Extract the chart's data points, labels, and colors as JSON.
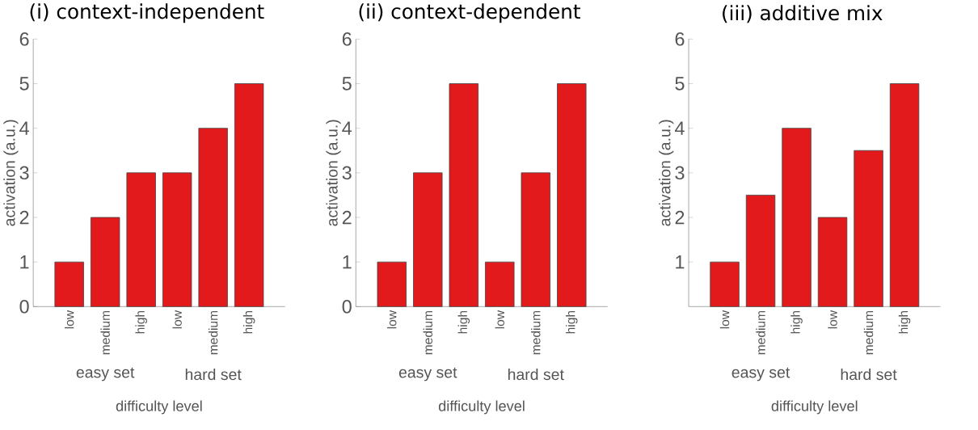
{
  "chart_data": [
    {
      "type": "bar",
      "title": "(i) context-independent",
      "categories": [
        "low",
        "medium",
        "high",
        "low",
        "medium",
        "high"
      ],
      "values": [
        1,
        2,
        3,
        3,
        4,
        5
      ],
      "color": "#e31a1c",
      "ylim": [
        0,
        6
      ],
      "yticks": [
        0,
        1,
        2,
        3,
        4,
        5,
        6
      ],
      "xlabel": "difficulty level",
      "ylabel": "activation (a.u.)",
      "annotations": [
        "easy set",
        "hard set"
      ]
    },
    {
      "type": "bar",
      "title": "(ii) context-dependent",
      "categories": [
        "low",
        "medium",
        "high",
        "low",
        "medium",
        "high"
      ],
      "values": [
        1,
        3,
        5,
        1,
        3,
        5
      ],
      "color": "#e31a1c",
      "ylim": [
        0,
        6
      ],
      "yticks": [
        0,
        1,
        2,
        3,
        4,
        5,
        6
      ],
      "xlabel": "difficulty level",
      "ylabel": "activation (a.u.)",
      "annotations": [
        "easy set",
        "hard set"
      ]
    },
    {
      "type": "bar",
      "title": "(iii) additive mix",
      "categories": [
        "low",
        "medium",
        "high",
        "low",
        "medium",
        "high"
      ],
      "values": [
        1,
        2.5,
        4,
        2,
        3.5,
        5
      ],
      "color": "#e31a1c",
      "ylim": [
        0,
        6
      ],
      "yticks": [
        1,
        2,
        3,
        4,
        5,
        6
      ],
      "xlabel": "difficulty level",
      "ylabel": "activation (a.u.)",
      "annotations": [
        "easy set",
        "hard set"
      ]
    }
  ]
}
